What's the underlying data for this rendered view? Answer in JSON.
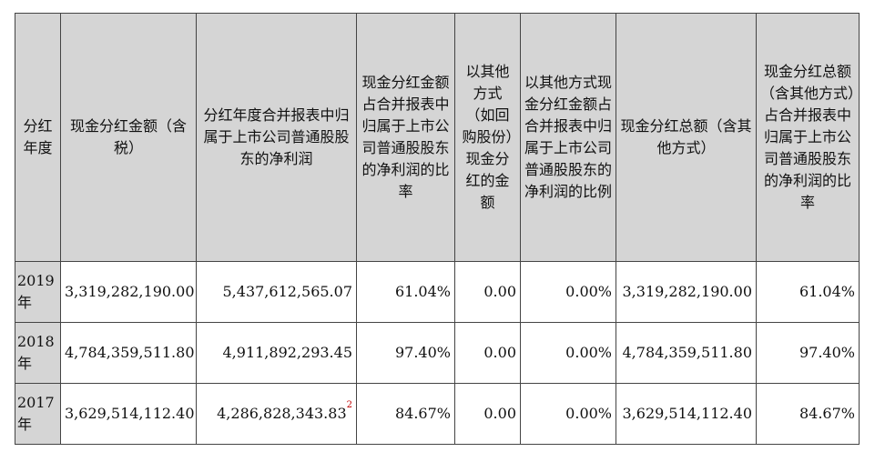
{
  "headers": {
    "year": "分红年度",
    "cash_dividend": "现金分红金额（含税）",
    "net_profit": "分红年度合并报表中归属于上市公司普通股股东的净利润",
    "cash_ratio": "现金分红金额占合并报表中归属于上市公司普通股股东的净利润的比率",
    "other_cash": "以其他方式（如回购股份）现金分红的金额",
    "other_ratio": "以其他方式现金分红金额占合并报表中归属于上市公司普通股股东的净利润的比例",
    "total_cash": "现金分红总额（含其他方式）",
    "total_ratio": "现金分红总额（含其他方式）占合并报表中归属于上市公司普通股股东的净利润的比率"
  },
  "rows": [
    {
      "year": "2019年",
      "cash_dividend": "3,319,282,190.00",
      "net_profit": "5,437,612,565.07",
      "cash_ratio": "61.04%",
      "other_cash": "0.00",
      "other_ratio": "0.00%",
      "total_cash": "3,319,282,190.00",
      "total_ratio": "61.04%"
    },
    {
      "year": "2018年",
      "cash_dividend": "4,784,359,511.80",
      "net_profit": "4,911,892,293.45",
      "cash_ratio": "97.40%",
      "other_cash": "0.00",
      "other_ratio": "0.00%",
      "total_cash": "4,784,359,511.80",
      "total_ratio": "97.40%"
    },
    {
      "year": "2017年",
      "cash_dividend": "3,629,514,112.40",
      "net_profit": "4,286,828,343.83",
      "net_profit_note": "2",
      "cash_ratio": "84.67%",
      "other_cash": "0.00",
      "other_ratio": "0.00%",
      "total_cash": "3,629,514,112.40",
      "total_ratio": "84.67%"
    }
  ]
}
